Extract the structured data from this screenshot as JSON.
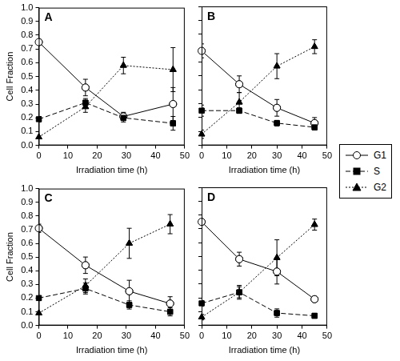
{
  "chart_data": [
    {
      "type": "line",
      "title": "A",
      "x_label": "Irradiation time (h)",
      "y_label": "Cell Fraction",
      "x": [
        0,
        16,
        29,
        46
      ],
      "series": [
        {
          "name": "G1",
          "color": "#000000",
          "marker": "open_circle",
          "line_style": "solid",
          "values": [
            0.75,
            0.42,
            0.21,
            0.3
          ],
          "errors": [
            0.02,
            0.06,
            0.03,
            0.12
          ]
        },
        {
          "name": "S",
          "color": "#000000",
          "marker": "square",
          "line_style": "dashed",
          "values": [
            0.19,
            0.31,
            0.2,
            0.16
          ],
          "errors": [
            0.02,
            0.03,
            0.03,
            0.05
          ]
        },
        {
          "name": "G2",
          "color": "#000000",
          "marker": "triangle",
          "line_style": "dotted",
          "values": [
            0.06,
            0.28,
            0.58,
            0.55
          ],
          "errors": [
            0.01,
            0.04,
            0.06,
            0.16
          ]
        }
      ],
      "xlim": [
        0,
        50
      ],
      "xticks": [
        0,
        10,
        20,
        30,
        40,
        50
      ],
      "ylim": [
        0,
        1
      ],
      "yticks": [
        {
          "value": 0,
          "label": "0.0"
        },
        0.1,
        0.2,
        0.3,
        0.4,
        0.5,
        0.6,
        0.7,
        0.8,
        0.9,
        {
          "value": 1,
          "label": "1.0"
        }
      ],
      "grid": false,
      "legend": "right"
    },
    {
      "type": "line",
      "title": "B",
      "x_label": "Irradiation time (h)",
      "x": [
        0,
        15,
        30,
        45
      ],
      "series": [
        {
          "name": "G1",
          "color": "#000000",
          "marker": "open_circle",
          "line_style": "solid",
          "values": [
            0.68,
            0.44,
            0.27,
            0.16
          ],
          "errors": [
            0.05,
            0.06,
            0.06,
            0.04
          ]
        },
        {
          "name": "S",
          "color": "#000000",
          "marker": "square",
          "line_style": "dashed",
          "values": [
            0.25,
            0.25,
            0.16,
            0.13
          ],
          "errors": [
            0.04,
            0.02,
            0.02,
            0.02
          ]
        },
        {
          "name": "G2",
          "color": "#000000",
          "marker": "triangle",
          "line_style": "dotted",
          "values": [
            0.08,
            0.31,
            0.57,
            0.71
          ],
          "errors": [
            0.03,
            0.07,
            0.09,
            0.05
          ]
        }
      ],
      "xlim": [
        0,
        50
      ],
      "xticks": [
        0,
        10,
        20,
        30,
        40,
        50
      ],
      "ylim": [
        0,
        1
      ],
      "yticks": [
        {
          "value": 0,
          "label": "0.0"
        },
        0.1,
        0.2,
        0.3,
        0.4,
        0.5,
        0.6,
        0.7,
        0.8,
        0.9,
        {
          "value": 1,
          "label": "1.0"
        }
      ],
      "grid": false,
      "legend": "right",
      "tick_labels": "x"
    },
    {
      "type": "line",
      "title": "C",
      "x_label": "Irradiation time (h)",
      "y_label": "Cell Fraction",
      "x": [
        0,
        16,
        31,
        45
      ],
      "series": [
        {
          "name": "G1",
          "color": "#000000",
          "marker": "open_circle",
          "line_style": "solid",
          "values": [
            0.71,
            0.44,
            0.25,
            0.16
          ],
          "errors": [
            0.03,
            0.06,
            0.08,
            0.05
          ]
        },
        {
          "name": "S",
          "color": "#000000",
          "marker": "square",
          "line_style": "dashed",
          "values": [
            0.2,
            0.27,
            0.15,
            0.1
          ],
          "errors": [
            0.01,
            0.04,
            0.03,
            0.03
          ]
        },
        {
          "name": "G2",
          "color": "#000000",
          "marker": "triangle",
          "line_style": "dotted",
          "values": [
            0.09,
            0.29,
            0.6,
            0.74
          ],
          "errors": [
            0.01,
            0.05,
            0.11,
            0.07
          ]
        }
      ],
      "xlim": [
        0,
        50
      ],
      "xticks": [
        0,
        10,
        20,
        30,
        40,
        50
      ],
      "ylim": [
        0,
        1
      ],
      "yticks": [
        {
          "value": 0,
          "label": "0.0"
        },
        0.1,
        0.2,
        0.3,
        0.4,
        0.5,
        0.6,
        0.7,
        0.8,
        0.9,
        {
          "value": 1,
          "label": "1.0"
        }
      ],
      "grid": false,
      "legend": "right"
    },
    {
      "type": "line",
      "title": "D",
      "x_label": "Irradiation time (h)",
      "x": [
        0,
        15,
        30,
        45
      ],
      "series": [
        {
          "name": "G1",
          "color": "#000000",
          "marker": "open_circle",
          "line_style": "solid",
          "values": [
            0.75,
            0.48,
            0.39,
            0.19
          ],
          "errors": [
            0.02,
            0.05,
            0.09,
            0.02
          ]
        },
        {
          "name": "S",
          "color": "#000000",
          "marker": "square",
          "line_style": "dashed",
          "values": [
            0.16,
            0.24,
            0.09,
            0.07
          ],
          "errors": [
            0.02,
            0.04,
            0.03,
            0.01
          ]
        },
        {
          "name": "G2",
          "color": "#000000",
          "marker": "triangle",
          "line_style": "dotted",
          "values": [
            0.06,
            0.24,
            0.49,
            0.73
          ],
          "errors": [
            0.02,
            0.05,
            0.13,
            0.04
          ]
        }
      ],
      "xlim": [
        0,
        50
      ],
      "xticks": [
        0,
        10,
        20,
        30,
        40,
        50
      ],
      "ylim": [
        0,
        1
      ],
      "yticks": [
        {
          "value": 0,
          "label": "0.0"
        },
        0.1,
        0.2,
        0.3,
        0.4,
        0.5,
        0.6,
        0.7,
        0.8,
        0.9,
        {
          "value": 1,
          "label": "1.0"
        }
      ],
      "grid": false,
      "legend": "right",
      "tick_labels": "x"
    }
  ]
}
